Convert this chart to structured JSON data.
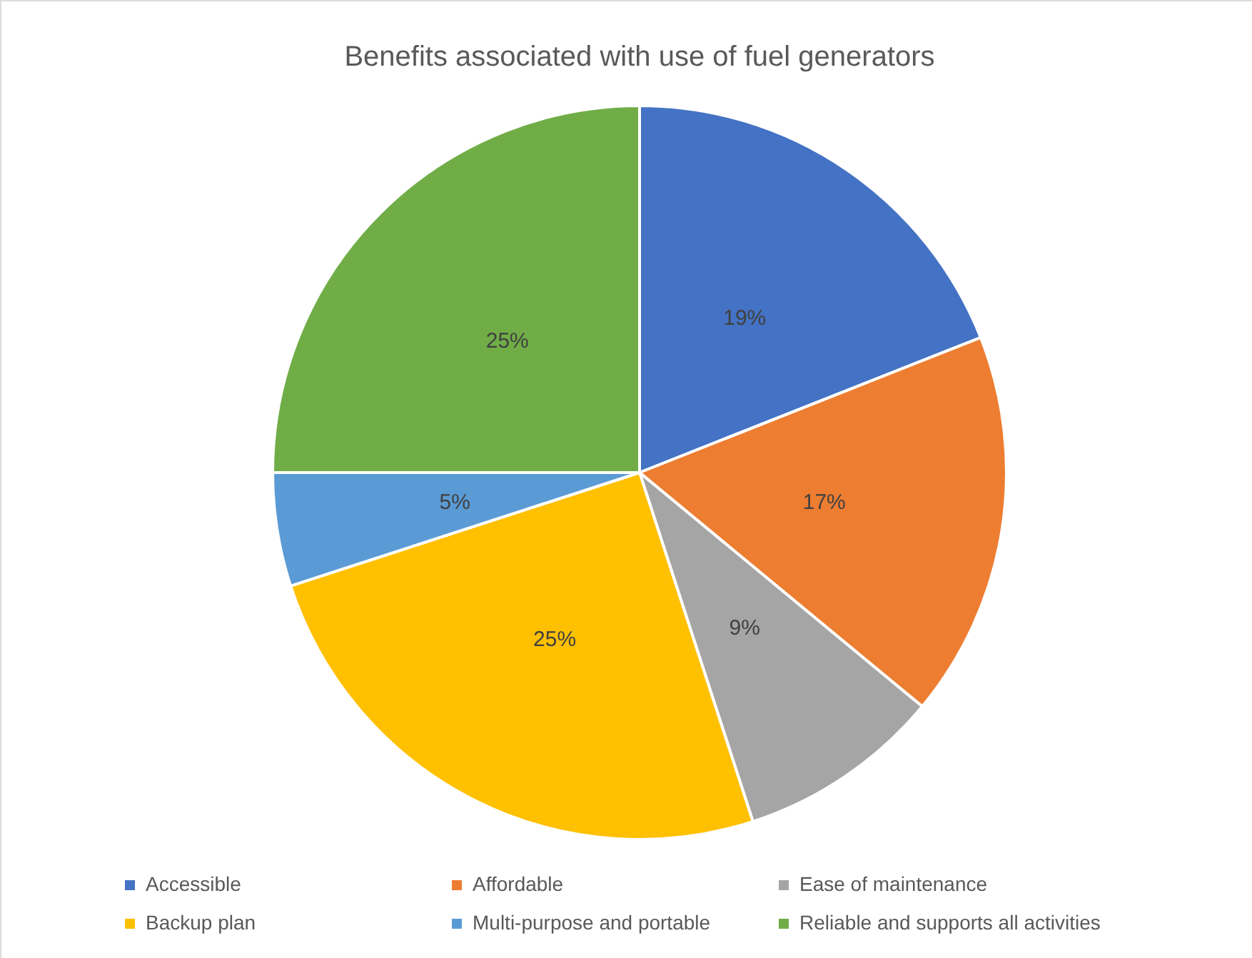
{
  "chart_data": {
    "type": "pie",
    "title": "Benefits associated with use of fuel generators",
    "categories": [
      "Accessible",
      "Affordable",
      "Ease of maintenance",
      "Backup plan",
      "Multi-purpose and portable",
      "Reliable and supports all activities"
    ],
    "values": [
      19,
      17,
      9,
      25,
      5,
      25
    ],
    "colors": [
      "#4472c4",
      "#ed7d31",
      "#a5a5a5",
      "#ffc000",
      "#5b9bd5",
      "#70ad47"
    ],
    "value_labels": [
      "19%",
      "17%",
      "9%",
      "25%",
      "5%",
      "25%"
    ],
    "legend": "bottom"
  }
}
